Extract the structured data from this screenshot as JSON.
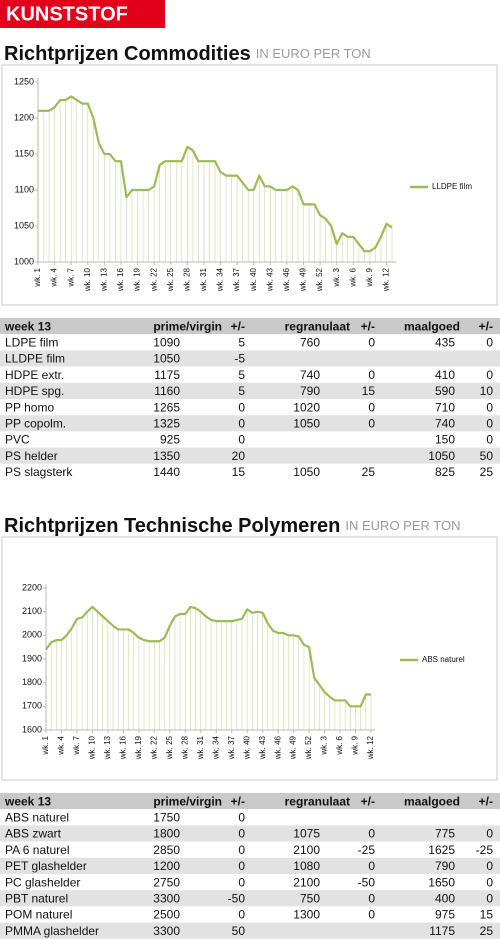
{
  "header": "KUNSTSTOF",
  "headings": [
    {
      "title": "Richtprijzen Commodities",
      "unit": "IN EURO PER TON"
    },
    {
      "title": "Richtprijzen Technische Polymeren",
      "unit": "IN EURO PER TON"
    }
  ],
  "chart_data": [
    {
      "type": "line",
      "categories": [
        "wk. 1",
        null,
        null,
        "wk. 4",
        null,
        null,
        "wk. 7",
        null,
        null,
        "wk. 10",
        null,
        null,
        "wk. 13",
        null,
        null,
        "wk. 16",
        null,
        null,
        "wk. 19",
        null,
        null,
        "wk. 22",
        null,
        null,
        "wk. 25",
        null,
        null,
        "wk. 28",
        null,
        null,
        "wk. 31",
        null,
        null,
        "wk. 34",
        null,
        null,
        "wk. 37",
        null,
        null,
        "wk. 40",
        null,
        null,
        "wk. 43",
        null,
        null,
        "wk. 46",
        null,
        null,
        "wk. 49",
        null,
        null,
        "wk. 52",
        null,
        null,
        "wk. 3",
        null,
        null,
        "wk. 6",
        null,
        null,
        "wk. 9",
        null,
        null,
        "wk. 12",
        null
      ],
      "series": [
        {
          "name": "LLDPE film",
          "color": "#9bbb59",
          "values": [
            1210,
            1210,
            1210,
            1215,
            1225,
            1225,
            1230,
            1225,
            1220,
            1220,
            1200,
            1165,
            1150,
            1150,
            1140,
            1140,
            1090,
            1100,
            1100,
            1100,
            1100,
            1105,
            1135,
            1140,
            1140,
            1140,
            1140,
            1160,
            1155,
            1140,
            1140,
            1140,
            1140,
            1125,
            1120,
            1120,
            1120,
            1110,
            1100,
            1100,
            1120,
            1105,
            1105,
            1100,
            1100,
            1100,
            1105,
            1100,
            1080,
            1080,
            1080,
            1065,
            1060,
            1050,
            1025,
            1040,
            1035,
            1035,
            1025,
            1015,
            1015,
            1020,
            1035,
            1053,
            1048
          ]
        }
      ],
      "ylim": [
        1000,
        1250
      ],
      "yticks": [
        1000,
        1050,
        1100,
        1150,
        1200,
        1250
      ],
      "drop_lines": true
    },
    {
      "type": "line",
      "categories": [
        "wk. 1",
        null,
        null,
        "wk. 4",
        null,
        null,
        "wk. 7",
        null,
        null,
        "wk. 10",
        null,
        null,
        "wk. 13",
        null,
        null,
        "wk. 16",
        null,
        null,
        "wk. 19",
        null,
        null,
        "wk. 22",
        null,
        null,
        "wk. 25",
        null,
        null,
        "wk. 28",
        null,
        null,
        "wk. 31",
        null,
        null,
        "wk. 34",
        null,
        null,
        "wk. 37",
        null,
        null,
        "wk. 40",
        null,
        null,
        "wk. 43",
        null,
        null,
        "wk. 46",
        null,
        null,
        "wk. 49",
        null,
        null,
        "wk. 52",
        null,
        null,
        "wk. 3",
        null,
        null,
        "wk. 6",
        null,
        null,
        "wk. 9",
        null,
        null,
        "wk. 12"
      ],
      "series": [
        {
          "name": "ABS naturel",
          "color": "#9bbb59",
          "values": [
            1940,
            1970,
            1980,
            1980,
            2000,
            2030,
            2070,
            2075,
            2100,
            2120,
            2100,
            2080,
            2060,
            2040,
            2025,
            2025,
            2025,
            2010,
            1990,
            1980,
            1975,
            1975,
            1975,
            1990,
            2040,
            2080,
            2090,
            2090,
            2120,
            2115,
            2100,
            2080,
            2065,
            2060,
            2060,
            2060,
            2060,
            2065,
            2070,
            2110,
            2095,
            2100,
            2095,
            2050,
            2020,
            2010,
            2010,
            2000,
            2000,
            1995,
            1960,
            1950,
            1820,
            1790,
            1760,
            1740,
            1725,
            1725,
            1725,
            1700,
            1700,
            1700,
            1750,
            1750
          ]
        }
      ],
      "ylim": [
        1600,
        2200
      ],
      "yticks": [
        1600,
        1700,
        1800,
        1900,
        2000,
        2100,
        2200
      ],
      "drop_lines": true
    }
  ],
  "tables": [
    {
      "columns": [
        "week 13",
        "prime/virgin",
        "+/-",
        "regranulaat",
        "+/-",
        "maalgoed",
        "+/-"
      ],
      "rows": [
        [
          "LDPE film",
          1090,
          5,
          760,
          0,
          435,
          0
        ],
        [
          "LLDPE film",
          1050,
          -5,
          null,
          null,
          null,
          null
        ],
        [
          "HDPE extr.",
          1175,
          5,
          740,
          0,
          410,
          0
        ],
        [
          "HDPE spg.",
          1160,
          5,
          790,
          15,
          590,
          10
        ],
        [
          "PP homo",
          1265,
          0,
          1020,
          0,
          710,
          0
        ],
        [
          "PP copolm.",
          1325,
          0,
          1050,
          0,
          740,
          0
        ],
        [
          "PVC",
          925,
          0,
          null,
          null,
          150,
          0
        ],
        [
          "PS helder",
          1350,
          20,
          null,
          null,
          1050,
          50
        ],
        [
          "PS slagsterk",
          1440,
          15,
          1050,
          25,
          825,
          25
        ]
      ]
    },
    {
      "columns": [
        "week 13",
        "prime/virgin",
        "+/-",
        "regranulaat",
        "+/-",
        "maalgoed",
        "+/-"
      ],
      "rows": [
        [
          "ABS naturel",
          1750,
          0,
          null,
          null,
          null,
          null
        ],
        [
          "ABS zwart",
          1800,
          0,
          1075,
          0,
          775,
          0
        ],
        [
          "PA 6 naturel",
          2850,
          0,
          2100,
          -25,
          1625,
          -25
        ],
        [
          "PET glashelder",
          1200,
          0,
          1080,
          0,
          790,
          0
        ],
        [
          "PC glashelder",
          2750,
          0,
          2100,
          -50,
          1650,
          0
        ],
        [
          "PBT naturel",
          3300,
          -50,
          750,
          0,
          400,
          0
        ],
        [
          "POM naturel",
          2500,
          0,
          1300,
          0,
          975,
          15
        ],
        [
          "PMMA glashelder",
          3300,
          50,
          null,
          null,
          1175,
          25
        ]
      ]
    }
  ]
}
